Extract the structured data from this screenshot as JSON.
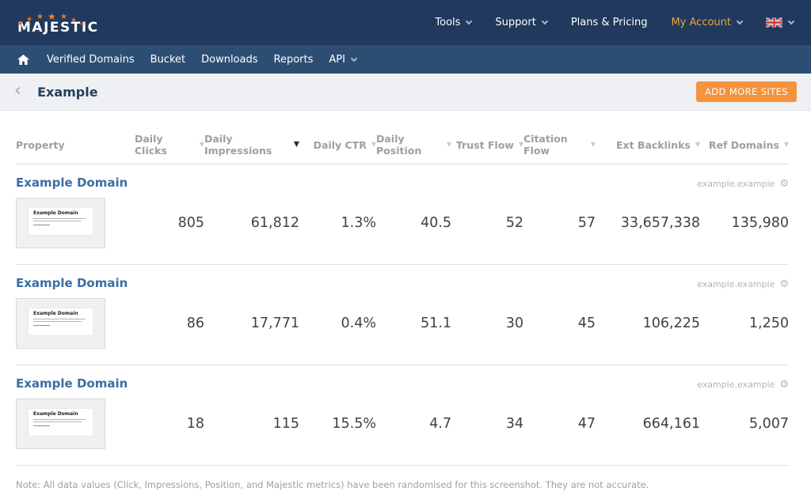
{
  "colors": {
    "topbar": "#20395c",
    "subnav": "#2d4e73",
    "button_orange": "#f5923c",
    "my_account_orange": "#f0a33c",
    "domain_title_blue": "#3b6ea5",
    "star_orange": "#ee6a1f"
  },
  "topnav": {
    "logo": "MAJESTIC",
    "items": [
      {
        "label": "Tools",
        "caret": true,
        "accent": false
      },
      {
        "label": "Support",
        "caret": true,
        "accent": false
      },
      {
        "label": "Plans & Pricing",
        "caret": false,
        "accent": false
      },
      {
        "label": "My Account",
        "caret": true,
        "accent": true
      }
    ],
    "flag": "uk-flag"
  },
  "subnav": {
    "items": [
      {
        "label": "Verified Domains",
        "caret": false
      },
      {
        "label": "Bucket",
        "caret": false
      },
      {
        "label": "Downloads",
        "caret": false
      },
      {
        "label": "Reports",
        "caret": false
      },
      {
        "label": "API",
        "caret": true
      }
    ]
  },
  "header": {
    "title": "Example",
    "add_button": "ADD MORE SITES"
  },
  "table": {
    "property_header": "Property",
    "columns": [
      {
        "label": "Daily Clicks",
        "sort_active": false
      },
      {
        "label": "Daily Impressions",
        "sort_active": true
      },
      {
        "label": "Daily CTR",
        "sort_active": false
      },
      {
        "label": "Daily Position",
        "sort_active": false
      },
      {
        "label": "Trust Flow",
        "sort_active": false
      },
      {
        "label": "Citation Flow",
        "sort_active": false
      },
      {
        "label": "Ext Backlinks",
        "sort_active": false
      },
      {
        "label": "Ref Domains",
        "sort_active": false
      }
    ],
    "rows": [
      {
        "title": "Example Domain",
        "domain": "example.example",
        "thumb_title": "Example Domain",
        "values": [
          "805",
          "61,812",
          "1.3%",
          "40.5",
          "52",
          "57",
          "33,657,338",
          "135,980"
        ]
      },
      {
        "title": "Example Domain",
        "domain": "example.example",
        "thumb_title": "Example Domain",
        "values": [
          "86",
          "17,771",
          "0.4%",
          "51.1",
          "30",
          "45",
          "106,225",
          "1,250"
        ]
      },
      {
        "title": "Example Domain",
        "domain": "example.example",
        "thumb_title": "Example Domain",
        "values": [
          "18",
          "115",
          "15.5%",
          "4.7",
          "34",
          "47",
          "664,161",
          "5,007"
        ]
      }
    ]
  },
  "note": "Note: All data values (Click, Impressions, Position, and Majestic metrics) have been randomised for this screenshot. They are not accurate."
}
